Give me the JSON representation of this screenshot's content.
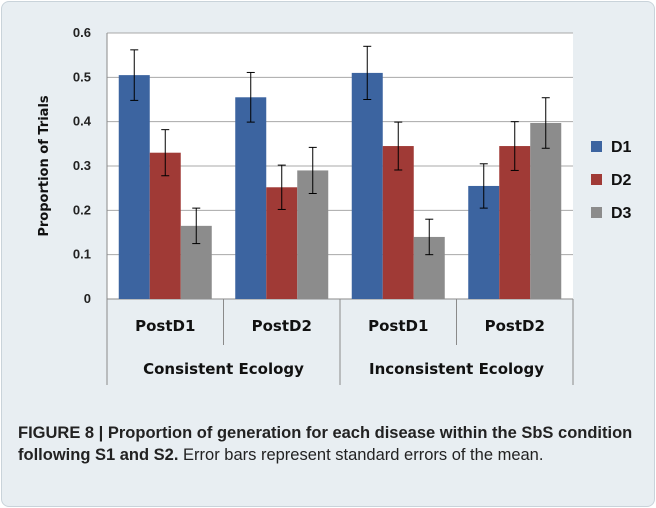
{
  "chart_data": {
    "type": "bar",
    "title": "",
    "ylabel": "Proportion of Trials",
    "xlabel": "",
    "ylim": [
      0,
      0.6
    ],
    "yticks": [
      0,
      0.1,
      0.2,
      0.3,
      0.4,
      0.5,
      0.6
    ],
    "ytick_labels": [
      "0",
      "0.1",
      "0.2",
      "0.3",
      "0.4",
      "0.5",
      "0.6"
    ],
    "grid": true,
    "legend_position": "right",
    "categories": [
      "PostD1",
      "PostD2",
      "PostD1",
      "PostD2"
    ],
    "groups": [
      {
        "label": "Consistent Ecology",
        "categories": [
          "PostD1",
          "PostD2"
        ]
      },
      {
        "label": "Inconsistent Ecology",
        "categories": [
          "PostD1",
          "PostD2"
        ]
      }
    ],
    "series": [
      {
        "name": "D1",
        "color": "#3c64a0",
        "values": [
          0.505,
          0.455,
          0.51,
          0.255
        ],
        "errors": [
          0.057,
          0.056,
          0.06,
          0.05
        ]
      },
      {
        "name": "D2",
        "color": "#a03a36",
        "values": [
          0.33,
          0.252,
          0.345,
          0.345
        ],
        "errors": [
          0.052,
          0.05,
          0.054,
          0.055
        ]
      },
      {
        "name": "D3",
        "color": "#8c8c8c",
        "values": [
          0.165,
          0.29,
          0.14,
          0.397
        ],
        "errors": [
          0.04,
          0.052,
          0.04,
          0.057
        ]
      }
    ]
  },
  "caption": {
    "bold": "FIGURE 8 | Proportion of generation for each disease within the SbS condition following S1 and S2.",
    "text": " Error bars represent standard errors of the mean."
  }
}
